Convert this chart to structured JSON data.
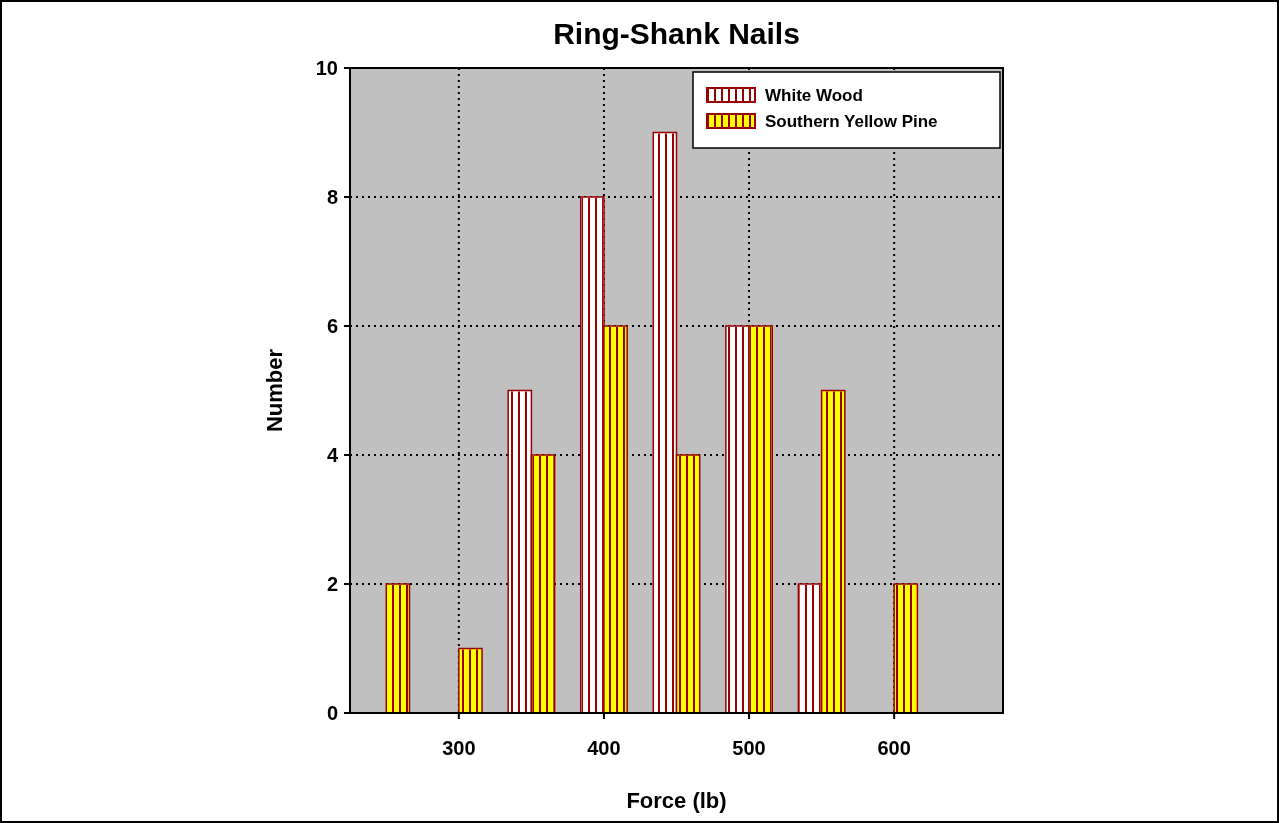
{
  "chart_data": {
    "type": "bar",
    "title": "Ring-Shank Nails",
    "xlabel": "Force (lb)",
    "ylabel": "Number",
    "x": [
      250,
      300,
      350,
      400,
      450,
      500,
      550,
      600
    ],
    "series": [
      {
        "name": "White Wood",
        "color": "#ffffff",
        "values": [
          null,
          null,
          5,
          8,
          9,
          6,
          2,
          null
        ]
      },
      {
        "name": "Southern Yellow Pine",
        "color": "#ffff00",
        "values": [
          2,
          1,
          4,
          6,
          4,
          6,
          5,
          2
        ]
      }
    ],
    "xlim": [
      225,
      675
    ],
    "xticks": [
      300,
      400,
      500,
      600
    ],
    "ylim": [
      0,
      10
    ],
    "yticks": [
      0,
      2,
      4,
      6,
      8,
      10
    ],
    "grid": true,
    "legend": "top right"
  }
}
